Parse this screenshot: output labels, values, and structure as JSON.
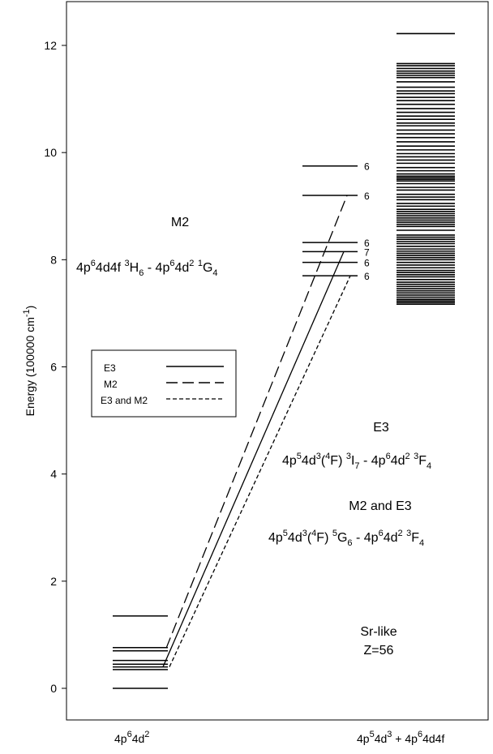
{
  "chart_data": {
    "type": "energy-level-diagram",
    "ylabel": "Energy (100000 cm",
    "ylabel_sup": "-1",
    "ylabel_close": ")",
    "ylim": [
      -0.6,
      12.8
    ],
    "y_ticks": [
      0,
      2,
      4,
      6,
      8,
      10,
      12
    ],
    "y_tick_labels": [
      "0",
      "2",
      "4",
      "6",
      "8",
      "10",
      "12"
    ],
    "groups": [
      {
        "name": "4p⁶4d²",
        "label_base": "4p",
        "label_parts": [
          [
            "sup",
            "6"
          ],
          [
            "base",
            "4d"
          ],
          [
            "sup",
            "2"
          ]
        ],
        "levels": [
          0.0,
          0.35,
          0.4,
          0.45,
          0.52,
          0.7,
          0.76,
          1.35
        ]
      },
      {
        "name": "4p⁵4d³ + 4p⁶4d4f",
        "label_parts": [
          [
            "base",
            "4p"
          ],
          [
            "sup",
            "5"
          ],
          [
            "base",
            "4d"
          ],
          [
            "sup",
            "3"
          ],
          [
            "base",
            " + 4p"
          ],
          [
            "sup",
            "6"
          ],
          [
            "base",
            "4d4f"
          ]
        ],
        "labeled_levels": [
          {
            "energy": 9.75,
            "label": "6"
          },
          {
            "energy": 9.2,
            "label": "6"
          },
          {
            "energy": 8.32,
            "label": "6"
          },
          {
            "energy": 8.15,
            "label": "7"
          },
          {
            "energy": 7.95,
            "label": "6"
          },
          {
            "energy": 7.7,
            "label": "6"
          }
        ],
        "dense_levels": [
          7.17,
          7.2,
          7.23,
          7.26,
          7.3,
          7.34,
          7.38,
          7.42,
          7.46,
          7.5,
          7.54,
          7.58,
          7.63,
          7.68,
          7.72,
          7.76,
          7.8,
          7.85,
          7.9,
          7.95,
          8.0,
          8.04,
          8.08,
          8.12,
          8.16,
          8.2,
          8.25,
          8.3,
          8.34,
          8.38,
          8.42,
          8.46,
          8.55,
          8.62,
          8.66,
          8.7,
          8.74,
          8.78,
          8.82,
          8.86,
          8.9,
          8.94,
          9.0,
          9.05,
          9.12,
          9.17,
          9.22,
          9.3,
          9.35,
          9.42,
          9.47,
          9.5,
          9.53,
          9.56,
          9.6,
          9.66,
          9.72,
          9.8,
          9.86,
          9.92,
          9.98,
          10.05,
          10.12,
          10.2,
          10.28,
          10.35,
          10.42,
          10.5,
          10.55,
          10.62,
          10.68,
          10.75,
          10.82,
          10.9,
          10.97,
          11.03,
          11.1,
          11.15,
          11.22,
          11.32,
          11.4,
          11.44,
          11.48,
          11.52,
          11.57,
          11.62,
          11.66,
          12.22
        ]
      }
    ],
    "transitions": [
      {
        "type": "M2",
        "style": "long-dash",
        "from": 0.75,
        "to": 9.2
      },
      {
        "type": "E3",
        "style": "solid",
        "from": 0.4,
        "to": 8.15
      },
      {
        "type": "E3 and M2",
        "style": "short-dash",
        "from": 0.4,
        "to": 7.7
      }
    ],
    "legend": {
      "placement": "left",
      "entries": [
        {
          "name": "E3",
          "style": "solid"
        },
        {
          "name": "M2",
          "style": "long-dash"
        },
        {
          "name": "E3 and M2",
          "style": "short-dash"
        }
      ]
    }
  },
  "annotations": {
    "m2_title": "M2",
    "e3_title": "E3",
    "m2e3_title": "M2 and E3",
    "sr_line1": "Sr-like",
    "sr_line2": "Z=56"
  }
}
